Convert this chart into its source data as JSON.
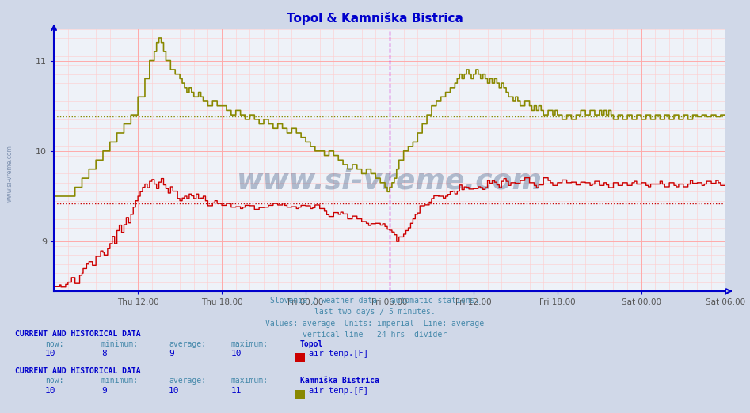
{
  "title": "Topol & Kamniška Bistrica",
  "title_color": "#0000cc",
  "background_color": "#d0d8e8",
  "plot_bg_color": "#eef2f8",
  "ylim": [
    8.45,
    11.35
  ],
  "xlim": [
    0,
    576
  ],
  "x_tick_positions": [
    72,
    144,
    216,
    288,
    360,
    432,
    504,
    576
  ],
  "x_tick_labels": [
    "Thu 12:00",
    "Thu 18:00",
    "Fri 00:00",
    "Fri 06:00",
    "Fri 12:00",
    "Fri 18:00",
    "Sat 00:00",
    "Sat 06:00"
  ],
  "y_tick_positions": [
    9,
    10,
    11
  ],
  "y_tick_labels": [
    "9",
    "10",
    "11"
  ],
  "subtitle_lines": [
    "Slovenia / weather data - automatic stations.",
    "last two days / 5 minutes.",
    "Values: average  Units: imperial  Line: average",
    "vertical line - 24 hrs  divider"
  ],
  "subtitle_color": "#4488aa",
  "grid_color_major": "#ffaaaa",
  "grid_color_minor": "#ffcccc",
  "vline_24h_color": "#cc00cc",
  "vline_24h_x": 288,
  "vline_end_color": "#8888ff",
  "vline_end_x": 576,
  "avg_line_topol_y": 9.42,
  "avg_line_topol_color": "#cc0000",
  "avg_line_kamniska_y": 10.38,
  "avg_line_kamniska_color": "#888800",
  "topol_color": "#cc0000",
  "kamniska_color": "#888800",
  "legend_block1_title": "CURRENT AND HISTORICAL DATA",
  "legend_block1_station": "Topol",
  "legend_block1_now": "10",
  "legend_block1_min": "8",
  "legend_block1_avg": "9",
  "legend_block1_max": "10",
  "legend_block1_param": "air temp.[F]",
  "legend_block1_color": "#cc0000",
  "legend_block2_title": "CURRENT AND HISTORICAL DATA",
  "legend_block2_station": "Kamniška Bistrica",
  "legend_block2_now": "10",
  "legend_block2_min": "9",
  "legend_block2_avg": "10",
  "legend_block2_max": "11",
  "legend_block2_param": "air temp.[F]",
  "legend_block2_color": "#888800",
  "watermark_text": "www.si-vreme.com",
  "watermark_color": "#1a3a6a",
  "watermark_alpha": 0.3,
  "axis_color": "#0000cc",
  "tick_color": "#555555",
  "label_color": "#4488aa"
}
